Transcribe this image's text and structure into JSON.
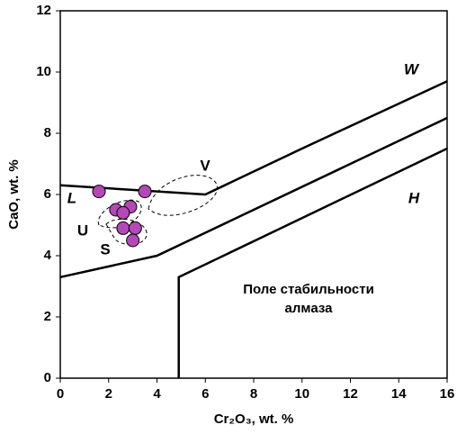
{
  "chart_data": {
    "type": "scatter",
    "xlabel": "Cr₂O₃, wt. %",
    "ylabel": "CaO, wt. %",
    "xlim": [
      0,
      16
    ],
    "ylim": [
      0,
      12
    ],
    "xticks": [
      0,
      2,
      4,
      6,
      8,
      10,
      12,
      14,
      16
    ],
    "yticks": [
      0,
      2,
      4,
      6,
      8,
      10,
      12
    ],
    "points": {
      "color": "#b548b8",
      "x": [
        1.6,
        3.5,
        2.9,
        2.3,
        2.6,
        2.6,
        3.1,
        3.0
      ],
      "y": [
        6.1,
        6.1,
        5.6,
        5.5,
        5.4,
        4.9,
        4.9,
        4.5
      ]
    },
    "lines": [
      {
        "x": [
          0,
          6,
          10,
          16
        ],
        "y": [
          6.3,
          6.0,
          7.5,
          9.7
        ]
      },
      {
        "x": [
          0,
          4,
          16
        ],
        "y": [
          3.3,
          4.0,
          8.5
        ]
      },
      {
        "x": [
          4.9,
          4.9,
          16
        ],
        "y": [
          0,
          3.3,
          7.5
        ]
      }
    ],
    "annotations": [
      "W",
      "L",
      "H",
      "V",
      "U",
      "S",
      "Поле стабильности",
      "алмаза"
    ]
  }
}
